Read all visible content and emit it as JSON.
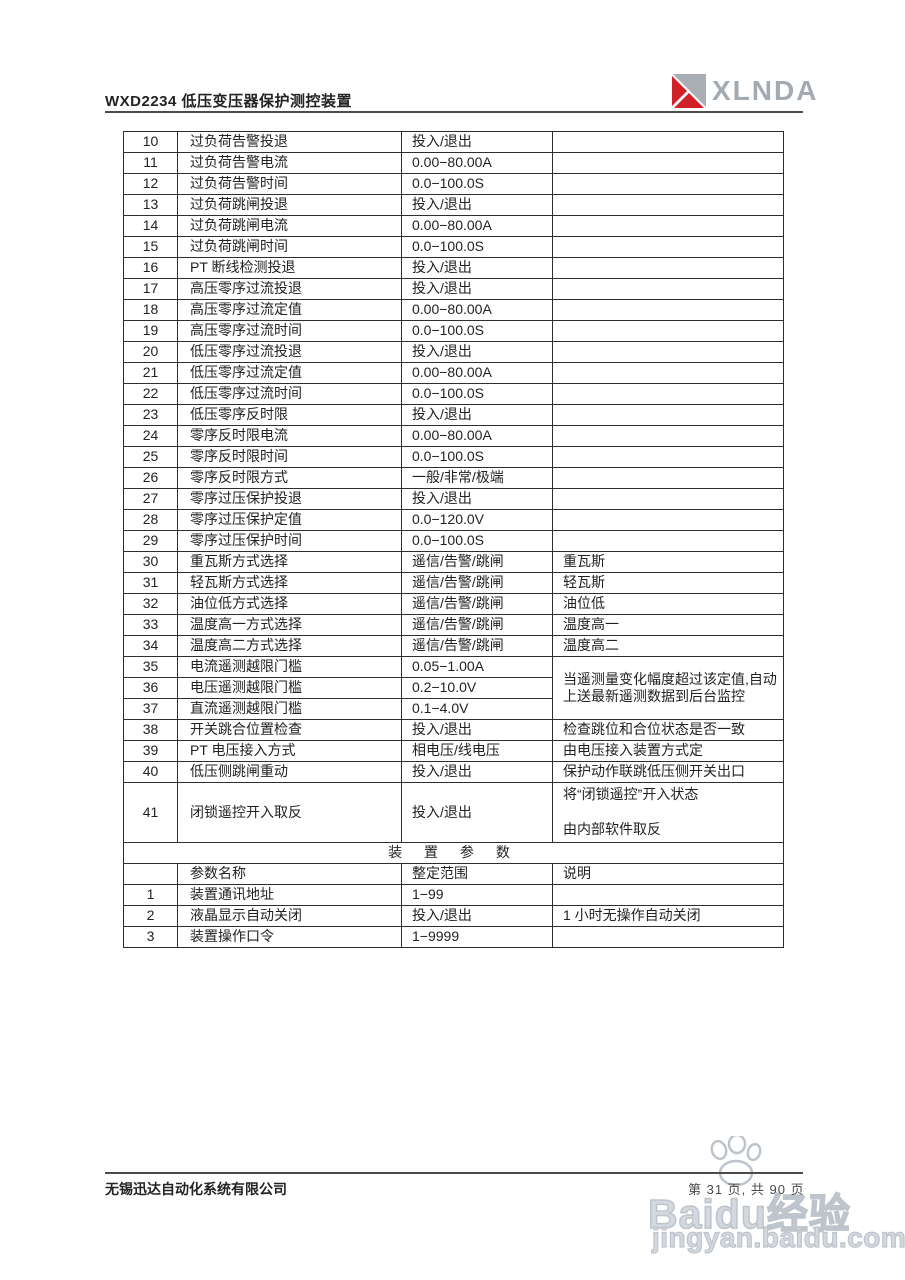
{
  "header": {
    "title": "WXD2234 低压变压器保护测控装置",
    "logo_text": "XLNDA"
  },
  "colors": {
    "logo_red": "#cf2127",
    "logo_gray": "#a9aeb4",
    "rule_gray": "#4b4b4b",
    "watermark_gray": "#bdc4cb"
  },
  "table": {
    "rows": [
      {
        "no": "10",
        "name": "过负荷告警投退",
        "range": "投入/退出",
        "desc": ""
      },
      {
        "no": "11",
        "name": "过负荷告警电流",
        "range": "0.00−80.00A",
        "desc": ""
      },
      {
        "no": "12",
        "name": "过负荷告警时间",
        "range": "0.0−100.0S",
        "desc": ""
      },
      {
        "no": "13",
        "name": "过负荷跳闸投退",
        "range": "投入/退出",
        "desc": ""
      },
      {
        "no": "14",
        "name": "过负荷跳闸电流",
        "range": "0.00−80.00A",
        "desc": ""
      },
      {
        "no": "15",
        "name": "过负荷跳闸时间",
        "range": "0.0−100.0S",
        "desc": ""
      },
      {
        "no": "16",
        "name": "PT 断线检测投退",
        "range": "投入/退出",
        "desc": ""
      },
      {
        "no": "17",
        "name": "高压零序过流投退",
        "range": "投入/退出",
        "desc": ""
      },
      {
        "no": "18",
        "name": "高压零序过流定值",
        "range": "0.00−80.00A",
        "desc": ""
      },
      {
        "no": "19",
        "name": "高压零序过流时间",
        "range": "0.0−100.0S",
        "desc": ""
      },
      {
        "no": "20",
        "name": "低压零序过流投退",
        "range": "投入/退出",
        "desc": ""
      },
      {
        "no": "21",
        "name": "低压零序过流定值",
        "range": "0.00−80.00A",
        "desc": ""
      },
      {
        "no": "22",
        "name": "低压零序过流时间",
        "range": "0.0−100.0S",
        "desc": ""
      },
      {
        "no": "23",
        "name": "低压零序反时限",
        "range": "投入/退出",
        "desc": ""
      },
      {
        "no": "24",
        "name": "零序反时限电流",
        "range": "0.00−80.00A",
        "desc": ""
      },
      {
        "no": "25",
        "name": "零序反时限时间",
        "range": "0.0−100.0S",
        "desc": ""
      },
      {
        "no": "26",
        "name": "零序反时限方式",
        "range": "一般/非常/极端",
        "desc": ""
      },
      {
        "no": "27",
        "name": "零序过压保护投退",
        "range": "投入/退出",
        "desc": ""
      },
      {
        "no": "28",
        "name": "零序过压保护定值",
        "range": "0.0−120.0V",
        "desc": ""
      },
      {
        "no": "29",
        "name": "零序过压保护时间",
        "range": "0.0−100.0S",
        "desc": ""
      },
      {
        "no": "30",
        "name": "重瓦斯方式选择",
        "range": "遥信/告警/跳闸",
        "desc": "重瓦斯"
      },
      {
        "no": "31",
        "name": "轻瓦斯方式选择",
        "range": "遥信/告警/跳闸",
        "desc": "轻瓦斯"
      },
      {
        "no": "32",
        "name": "油位低方式选择",
        "range": "遥信/告警/跳闸",
        "desc": "油位低"
      },
      {
        "no": "33",
        "name": "温度高一方式选择",
        "range": "遥信/告警/跳闸",
        "desc": "温度高一"
      },
      {
        "no": "34",
        "name": "温度高二方式选择",
        "range": "遥信/告警/跳闸",
        "desc": "温度高二"
      },
      {
        "no": "35",
        "name": "电流遥测越限门槛",
        "range": "0.05−1.00A",
        "desc": "当遥测量变化幅度超过该定值,自动上送最新遥测数据到后台监控",
        "desc_rowspan": 3
      },
      {
        "no": "36",
        "name": "电压遥测越限门槛",
        "range": "0.2−10.0V",
        "desc": null
      },
      {
        "no": "37",
        "name": "直流遥测越限门槛",
        "range": "0.1−4.0V",
        "desc": null
      },
      {
        "no": "38",
        "name": "开关跳合位置检查",
        "range": "投入/退出",
        "desc": "检查跳位和合位状态是否一致"
      },
      {
        "no": "39",
        "name": "PT 电压接入方式",
        "range": "相电压/线电压",
        "desc": "由电压接入装置方式定"
      },
      {
        "no": "40",
        "name": "低压侧跳闸重动",
        "range": "投入/退出",
        "desc": "保护动作联跳低压侧开关出口"
      },
      {
        "no": "41",
        "name": "闭锁遥控开入取反",
        "range": "投入/退出",
        "desc": "将“闭锁遥控”开入状态\n\n由内部软件取反",
        "tall": true
      }
    ],
    "section_title": "装 置 参 数",
    "param_header": {
      "no": "",
      "name": "参数名称",
      "range": "整定范围",
      "desc": "说明"
    },
    "param_rows": [
      {
        "no": "1",
        "name": "装置通讯地址",
        "range": "1−99",
        "desc": ""
      },
      {
        "no": "2",
        "name": "液晶显示自动关闭",
        "range": "投入/退出",
        "desc": "1 小时无操作自动关闭"
      },
      {
        "no": "3",
        "name": "装置操作口令",
        "range": "1−9999",
        "desc": ""
      }
    ]
  },
  "footer": {
    "company": "无锡迅达自动化系统有限公司",
    "page_info": "第 31 页, 共 90 页"
  },
  "watermark": {
    "brand": "Baidu",
    "brand_suffix": "经验",
    "url": "jingyan.baidu.com"
  }
}
